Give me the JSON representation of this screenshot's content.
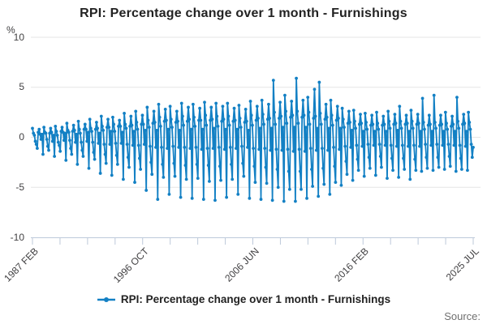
{
  "page": {
    "title": "RPI: Percentage change over 1 month - Furnishings"
  },
  "y_axis": {
    "unit_label": "%",
    "ticks": [
      "10",
      "5",
      "0",
      "-5",
      "-10"
    ]
  },
  "x_axis": {
    "tick_labels": [
      "1987 FEB",
      "1996 OCT",
      "2006 JUN",
      "2016 FEB",
      "2025 JUL"
    ],
    "minor_tick_count": 17
  },
  "legend": {
    "label": "RPI: Percentage change over 1 month - Furnishings"
  },
  "footer": {
    "source_label": "Source:"
  },
  "colors": {
    "series": "#1380C4",
    "grid": "#e6e6e6",
    "axis": "#bdc9da",
    "tick_text": "#414042"
  },
  "chart_data": {
    "type": "line",
    "title": "RPI: Percentage change over 1 month - Furnishings",
    "xlabel": "",
    "ylabel": "%",
    "ylim": [
      -10,
      10
    ],
    "y_ticks": [
      10,
      5,
      0,
      -5,
      -10
    ],
    "grid": true,
    "markers": true,
    "legend_position": "bottom",
    "x_start": "1987 FEB",
    "x_end": "2025 JUL",
    "frequency": "monthly",
    "x_labeled_ticks": [
      "1987 FEB",
      "1996 OCT",
      "2006 JUN",
      "2016 FEB",
      "2025 JUL"
    ],
    "series_name": "RPI: Percentage change over 1 month - Furnishings",
    "values": [
      0.9,
      0.4,
      0.2,
      -0.4,
      -0.7,
      -1.1,
      0.5,
      0.8,
      0.3,
      -0.2,
      0.3,
      -1.7,
      1.0,
      0.5,
      0.4,
      -0.2,
      -0.9,
      -1.3,
      0.4,
      0.9,
      0.5,
      -0.4,
      0.2,
      -1.9,
      1.1,
      0.6,
      0.2,
      -0.5,
      -0.8,
      -1.4,
      0.6,
      1.0,
      0.5,
      -0.3,
      0.4,
      -2.3,
      1.4,
      0.7,
      0.5,
      -0.3,
      -1.1,
      -1.7,
      0.6,
      1.2,
      0.7,
      -0.5,
      0.3,
      -2.7,
      1.6,
      0.8,
      0.4,
      -0.5,
      -1.3,
      -1.9,
      0.8,
      1.3,
      0.8,
      -0.4,
      0.5,
      -3.1,
      1.8,
      0.9,
      0.6,
      -0.5,
      -1.5,
      -2.2,
      0.8,
      1.5,
      0.9,
      -0.6,
      0.4,
      -3.6,
      2.1,
      1.1,
      0.7,
      -0.7,
      -1.7,
      -2.6,
      1.0,
      1.8,
      1.0,
      -0.7,
      0.6,
      -3.8,
      2.0,
      1.3,
      0.6,
      -0.6,
      -1.8,
      -2.7,
      1.1,
      1.7,
      1.1,
      -0.6,
      0.5,
      -4.2,
      2.4,
      1.3,
      0.9,
      -0.7,
      -2.0,
      -3.0,
      1.1,
      2.1,
      1.2,
      -0.8,
      0.6,
      -4.5,
      2.6,
      1.5,
      0.8,
      -0.8,
      -2.1,
      -3.2,
      1.3,
      2.2,
      1.3,
      -0.7,
      0.7,
      -5.3,
      3.0,
      1.7,
      1.0,
      -0.9,
      -2.5,
      -3.7,
      1.4,
      2.6,
      1.5,
      -1.0,
      0.7,
      -6.2,
      3.3,
      2.0,
      1.1,
      -1.0,
      -2.7,
      -4.0,
      1.6,
      2.8,
      1.7,
      -1.1,
      0.8,
      -5.7,
      3.1,
      1.8,
      1.0,
      -0.9,
      -2.6,
      -3.9,
      1.5,
      2.6,
      1.6,
      -1.0,
      0.7,
      -6.0,
      3.4,
      2.1,
      1.2,
      -1.0,
      -2.8,
      -4.2,
      1.6,
      3.0,
      1.8,
      -1.1,
      0.8,
      -6.1,
      3.3,
      2.0,
      1.1,
      -1.0,
      -2.7,
      -4.1,
      1.7,
      2.9,
      1.7,
      -1.2,
      0.8,
      -6.2,
      3.5,
      2.2,
      1.2,
      -1.1,
      -2.8,
      -4.4,
      1.7,
      3.0,
      1.8,
      -1.1,
      0.9,
      -6.3,
      3.4,
      2.1,
      1.1,
      -1.0,
      -2.9,
      -4.3,
      1.6,
      3.1,
      1.8,
      -1.2,
      0.8,
      -6.0,
      3.4,
      2.1,
      1.2,
      -1.0,
      -2.7,
      -4.2,
      1.6,
      2.9,
      1.7,
      -1.1,
      0.8,
      -5.7,
      3.2,
      1.9,
      1.0,
      -0.9,
      -2.6,
      -3.9,
      1.5,
      2.8,
      1.6,
      -1.0,
      0.7,
      -6.1,
      3.6,
      2.2,
      1.2,
      -1.1,
      -2.9,
      -4.5,
      1.7,
      3.1,
      1.9,
      -1.2,
      0.9,
      -6.2,
      3.7,
      2.3,
      1.3,
      -1.1,
      -3.0,
      -4.6,
      1.8,
      3.3,
      1.9,
      -1.3,
      0.9,
      -6.3,
      5.7,
      2.5,
      1.3,
      -1.2,
      -3.2,
      -5.0,
      1.9,
      3.5,
      2.1,
      -1.3,
      1.0,
      -6.4,
      4.2,
      2.6,
      1.4,
      -1.2,
      -3.4,
      -5.2,
      2.0,
      3.6,
      2.2,
      -1.4,
      1.0,
      -6.4,
      5.9,
      2.6,
      1.4,
      -1.2,
      -3.4,
      -5.2,
      2.0,
      3.7,
      2.2,
      -1.4,
      1.0,
      -6.1,
      4.0,
      2.5,
      1.3,
      -1.1,
      -3.2,
      -4.9,
      1.9,
      4.8,
      2.1,
      -1.3,
      0.9,
      -5.9,
      5.5,
      2.4,
      1.3,
      -1.1,
      -3.1,
      -4.7,
      1.8,
      3.3,
      2.0,
      -1.3,
      0.9,
      -5.7,
      3.7,
      2.2,
      1.2,
      -1.0,
      -2.9,
      -4.5,
      1.7,
      3.1,
      1.9,
      -1.2,
      0.9,
      -4.8,
      2.9,
      1.8,
      1.0,
      -0.9,
      -2.4,
      -3.7,
      1.4,
      2.6,
      1.5,
      -1.0,
      0.7,
      -4.3,
      2.7,
      1.6,
      0.9,
      -0.8,
      -2.2,
      -3.3,
      1.3,
      2.3,
      1.4,
      -0.9,
      0.6,
      -3.9,
      2.4,
      1.5,
      0.8,
      -0.7,
      -2.0,
      -3.1,
      1.2,
      2.2,
      1.3,
      -0.8,
      0.6,
      -3.8,
      2.5,
      1.4,
      0.8,
      -0.7,
      -1.9,
      -3.0,
      1.2,
      2.1,
      1.3,
      -0.8,
      0.6,
      -4.1,
      2.6,
      1.6,
      0.9,
      -0.8,
      -2.1,
      -3.3,
      1.3,
      2.3,
      1.4,
      -0.9,
      0.7,
      -4.0,
      3.1,
      1.6,
      0.9,
      -0.8,
      -2.1,
      -3.2,
      1.3,
      2.2,
      1.4,
      -0.9,
      0.6,
      -4.2,
      2.7,
      1.6,
      0.9,
      -0.8,
      -2.2,
      -3.3,
      1.3,
      2.3,
      1.4,
      -0.9,
      0.6,
      -3.4,
      3.9,
      1.5,
      0.8,
      -0.7,
      -2.0,
      -3.1,
      1.2,
      2.2,
      1.3,
      -0.8,
      0.6,
      -3.3,
      4.2,
      1.5,
      0.9,
      -0.7,
      -2.0,
      -3.0,
      1.2,
      2.2,
      1.3,
      -0.8,
      0.6,
      -3.2,
      2.5,
      1.4,
      0.8,
      -0.7,
      -1.9,
      -2.9,
      1.1,
      2.1,
      1.3,
      -0.8,
      0.6,
      -3.4,
      4.0,
      1.6,
      0.9,
      -0.8,
      -2.1,
      -3.2,
      1.3,
      2.3,
      1.4,
      -0.9,
      0.6,
      -3.3,
      2.5,
      1.5,
      0.8,
      -0.7,
      -2.0,
      -1.0
    ]
  }
}
